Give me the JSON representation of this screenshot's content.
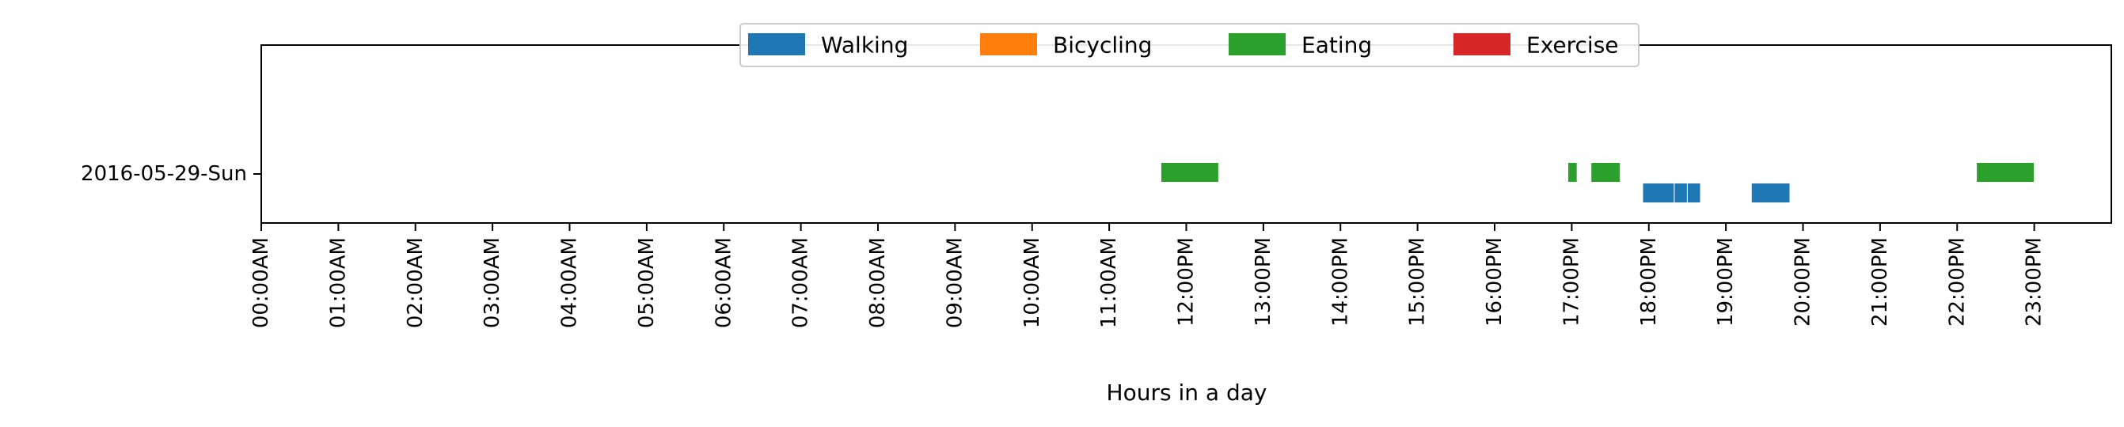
{
  "chart_data": {
    "type": "bar",
    "orientation": "horizontal",
    "title": "",
    "xlabel": "Hours in a day",
    "ylabel": "",
    "xlim": [
      0,
      24
    ],
    "x_ticks": [
      0,
      1,
      2,
      3,
      4,
      5,
      6,
      7,
      8,
      9,
      10,
      11,
      12,
      13,
      14,
      15,
      16,
      17,
      18,
      19,
      20,
      21,
      22,
      23
    ],
    "x_tick_labels": [
      "00:00AM",
      "01:00AM",
      "02:00AM",
      "03:00AM",
      "04:00AM",
      "05:00AM",
      "06:00AM",
      "07:00AM",
      "08:00AM",
      "09:00AM",
      "10:00AM",
      "11:00AM",
      "12:00PM",
      "13:00PM",
      "14:00PM",
      "15:00PM",
      "16:00PM",
      "17:00PM",
      "18:00PM",
      "19:00PM",
      "20:00PM",
      "21:00PM",
      "22:00PM",
      "23:00PM"
    ],
    "categories": [
      "2016-05-29-Sun"
    ],
    "grid": false,
    "legend_position": "top-center",
    "series": [
      {
        "name": "Walking",
        "color": "#1f77b4",
        "intervals": [
          [
            17.92,
            18.33
          ],
          [
            18.33,
            18.5
          ],
          [
            18.5,
            18.67
          ],
          [
            19.33,
            19.83
          ]
        ]
      },
      {
        "name": "Bicycling",
        "color": "#ff7f0e",
        "intervals": []
      },
      {
        "name": "Eating",
        "color": "#2ca02c",
        "intervals": [
          [
            11.67,
            12.42
          ],
          [
            16.95,
            17.07
          ],
          [
            17.25,
            17.63
          ],
          [
            22.25,
            23.0
          ]
        ]
      },
      {
        "name": "Exercise",
        "color": "#d62728",
        "intervals": []
      }
    ]
  }
}
